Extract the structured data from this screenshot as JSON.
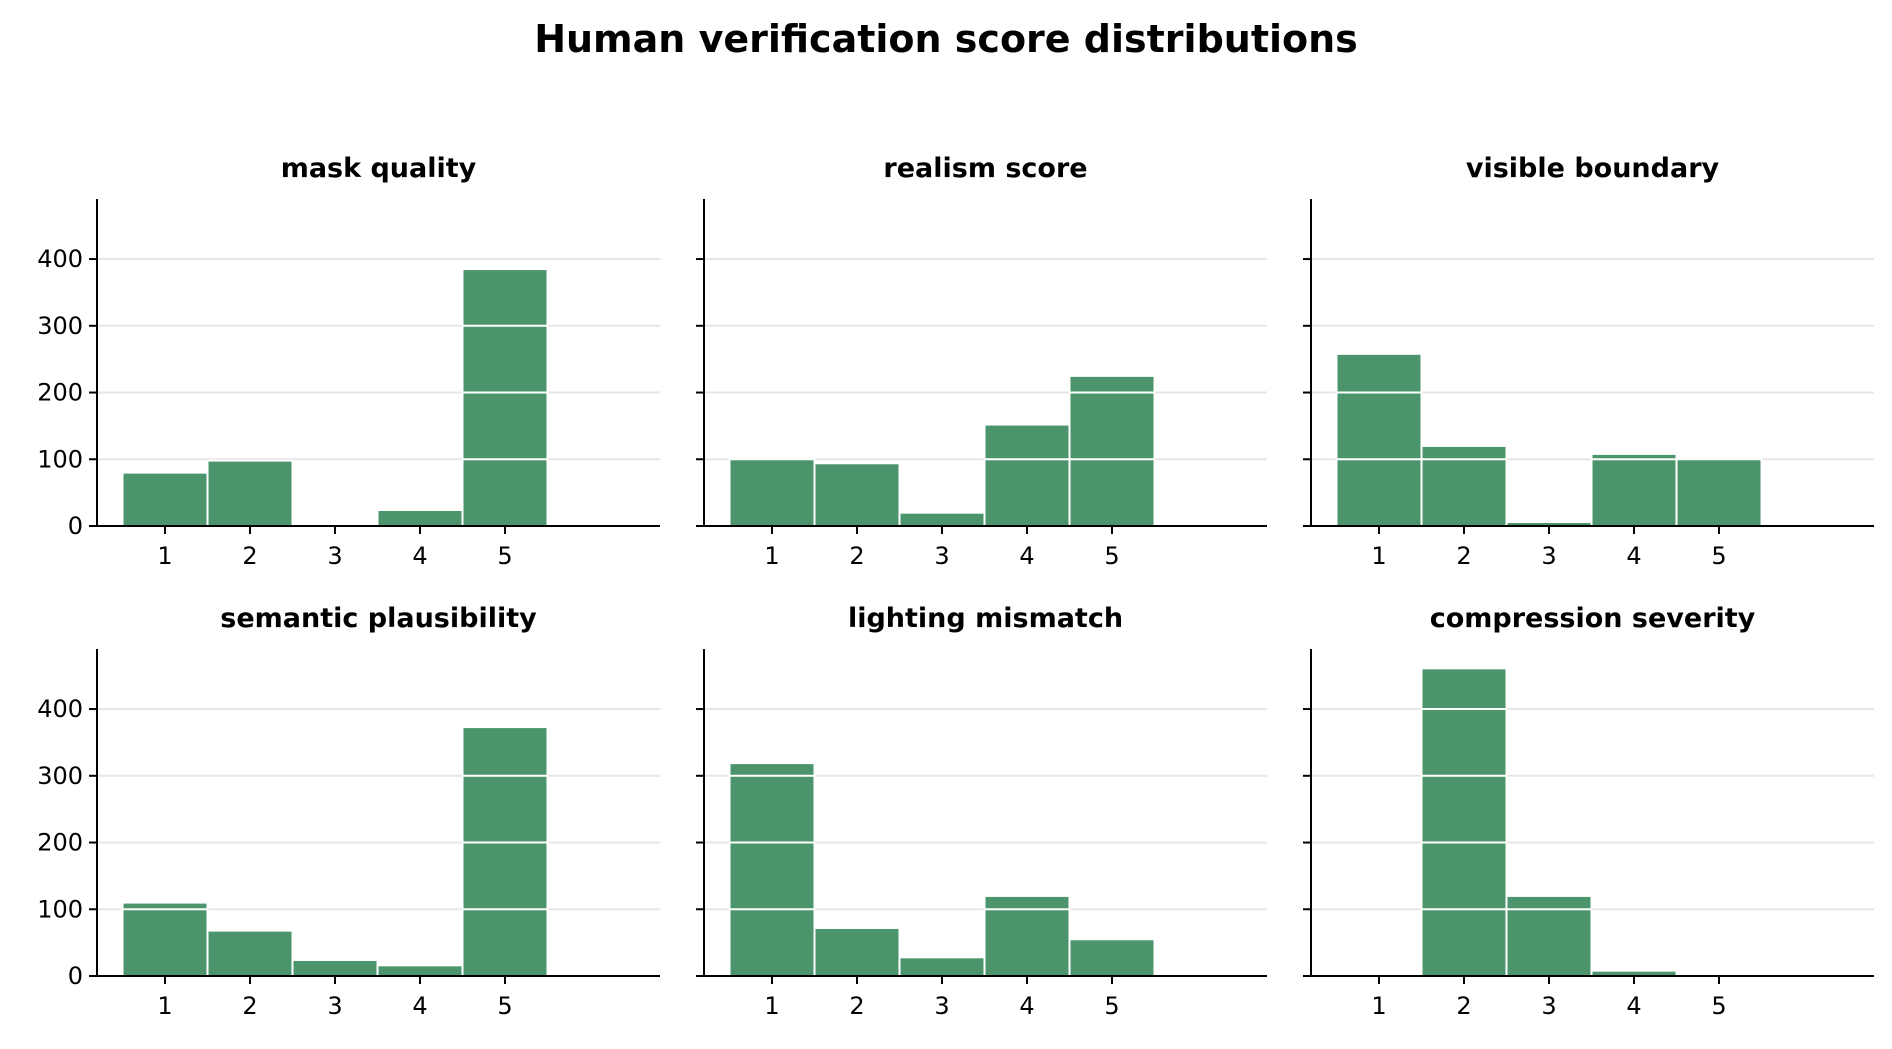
{
  "figure": {
    "title": "Human verification score distributions"
  },
  "colors": {
    "bar": "#4b946c",
    "bar_edge": "#ffffff",
    "grid": "#e6e6e6",
    "axis": "#000000"
  },
  "chart_data": [
    {
      "type": "bar",
      "title": "mask quality",
      "categories": [
        "1",
        "2",
        "3",
        "4",
        "5"
      ],
      "values": [
        80,
        98,
        3,
        24,
        385
      ],
      "xlabel": "",
      "ylabel": "",
      "ylim": [
        0,
        490
      ],
      "yticks": [
        0,
        100,
        200,
        300,
        400
      ],
      "grid": "horizontal"
    },
    {
      "type": "bar",
      "title": "realism score",
      "categories": [
        "1",
        "2",
        "3",
        "4",
        "5"
      ],
      "values": [
        100,
        94,
        20,
        152,
        225
      ],
      "xlabel": "",
      "ylabel": "",
      "ylim": [
        0,
        490
      ],
      "yticks": [
        0,
        100,
        200,
        300,
        400
      ],
      "grid": "horizontal"
    },
    {
      "type": "bar",
      "title": "visible boundary",
      "categories": [
        "1",
        "2",
        "3",
        "4",
        "5"
      ],
      "values": [
        258,
        120,
        6,
        108,
        100
      ],
      "xlabel": "",
      "ylabel": "",
      "ylim": [
        0,
        490
      ],
      "yticks": [
        0,
        100,
        200,
        300,
        400
      ],
      "grid": "horizontal"
    },
    {
      "type": "bar",
      "title": "semantic plausibility",
      "categories": [
        "1",
        "2",
        "3",
        "4",
        "5"
      ],
      "values": [
        110,
        68,
        24,
        16,
        373
      ],
      "xlabel": "",
      "ylabel": "",
      "ylim": [
        0,
        490
      ],
      "yticks": [
        0,
        100,
        200,
        300,
        400
      ],
      "grid": "horizontal"
    },
    {
      "type": "bar",
      "title": "lighting mismatch",
      "categories": [
        "1",
        "2",
        "3",
        "4",
        "5"
      ],
      "values": [
        319,
        72,
        28,
        120,
        55
      ],
      "xlabel": "",
      "ylabel": "",
      "ylim": [
        0,
        490
      ],
      "yticks": [
        0,
        100,
        200,
        300,
        400
      ],
      "grid": "horizontal"
    },
    {
      "type": "bar",
      "title": "compression severity",
      "categories": [
        "1",
        "2",
        "3",
        "4",
        "5"
      ],
      "values": [
        2,
        461,
        120,
        8,
        0
      ],
      "xlabel": "",
      "ylabel": "",
      "ylim": [
        0,
        490
      ],
      "yticks": [
        0,
        100,
        200,
        300,
        400
      ],
      "grid": "horizontal"
    }
  ]
}
